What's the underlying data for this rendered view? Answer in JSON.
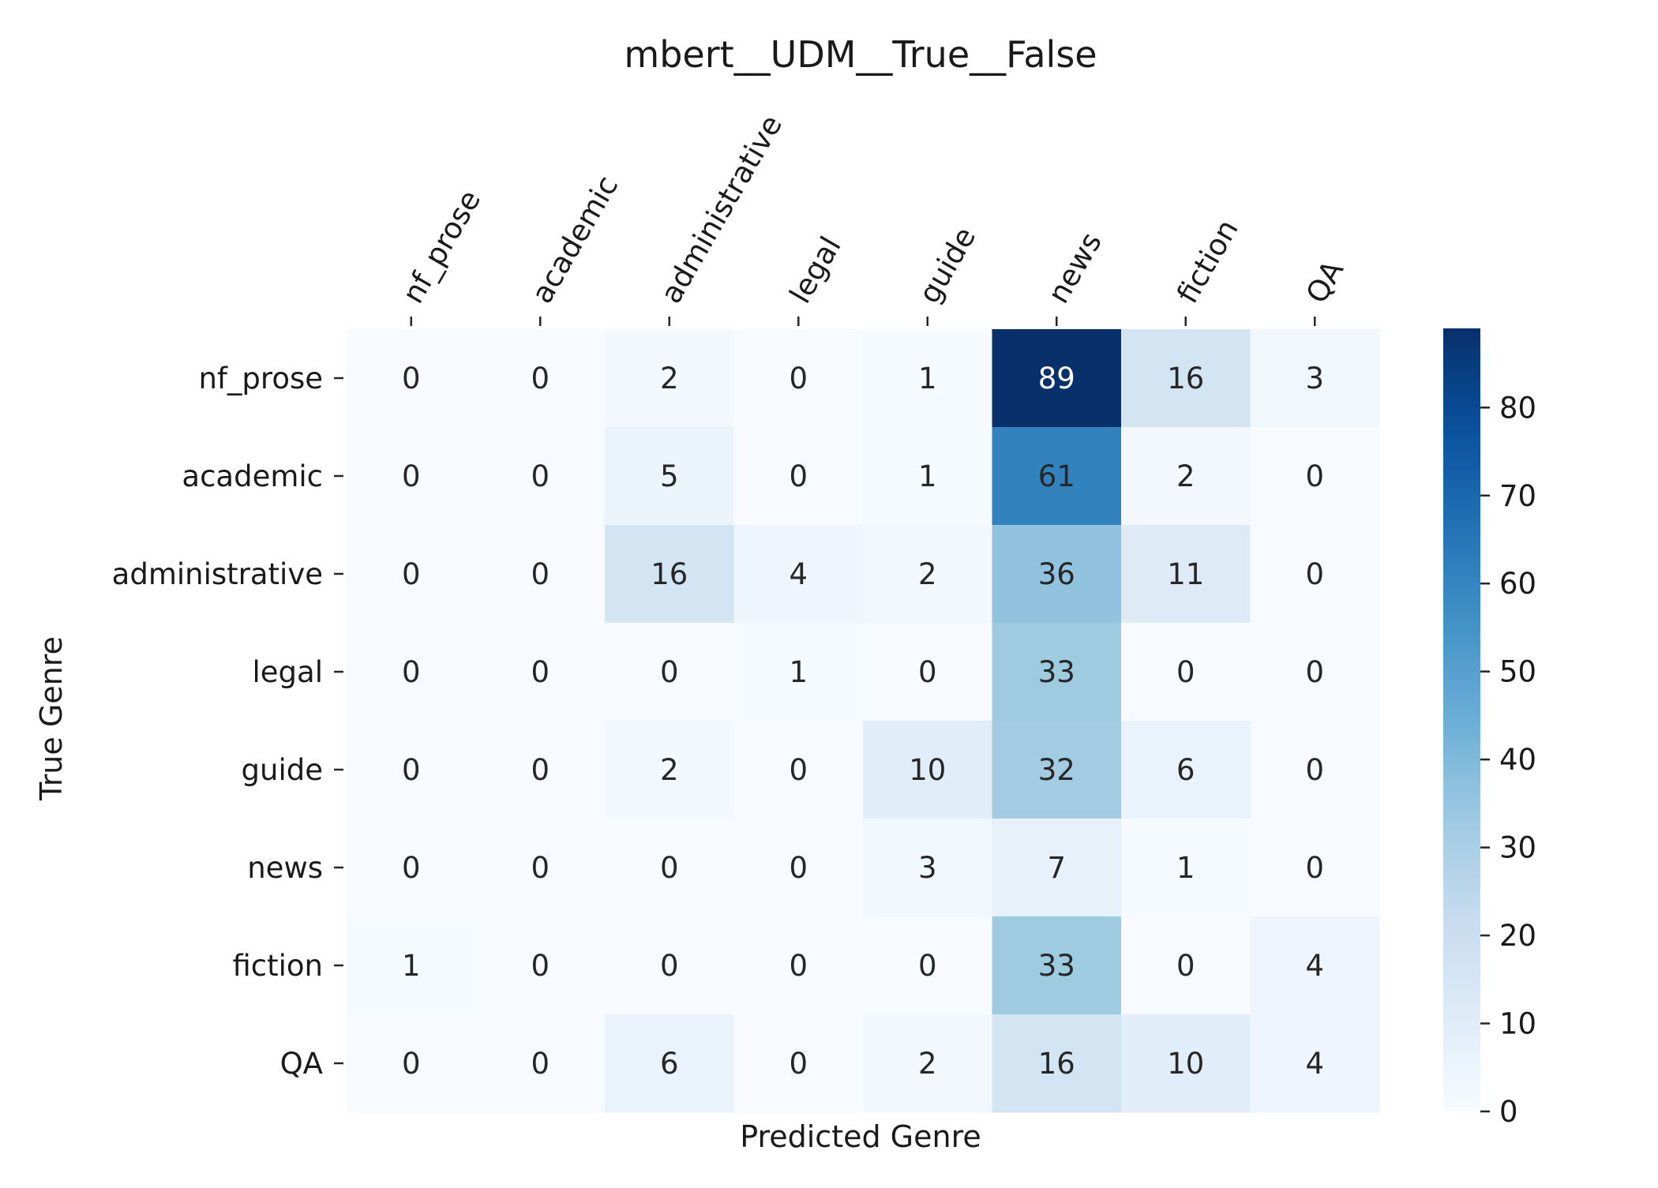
{
  "chart_data": {
    "type": "heatmap",
    "title": "mbert__UDM__True__False",
    "xlabel": "Predicted Genre",
    "ylabel": "True Genre",
    "x_categories": [
      "nf_prose",
      "academic",
      "administrative",
      "legal",
      "guide",
      "news",
      "fiction",
      "QA"
    ],
    "y_categories": [
      "nf_prose",
      "academic",
      "administrative",
      "legal",
      "guide",
      "news",
      "fiction",
      "QA"
    ],
    "values": [
      [
        0,
        0,
        2,
        0,
        1,
        89,
        16,
        3
      ],
      [
        0,
        0,
        5,
        0,
        1,
        61,
        2,
        0
      ],
      [
        0,
        0,
        16,
        4,
        2,
        36,
        11,
        0
      ],
      [
        0,
        0,
        0,
        1,
        0,
        33,
        0,
        0
      ],
      [
        0,
        0,
        2,
        0,
        10,
        32,
        6,
        0
      ],
      [
        0,
        0,
        0,
        0,
        3,
        7,
        1,
        0
      ],
      [
        1,
        0,
        0,
        0,
        0,
        33,
        0,
        4
      ],
      [
        0,
        0,
        6,
        0,
        2,
        16,
        10,
        4
      ]
    ],
    "colormap": "Blues",
    "vmin": 0,
    "vmax": 89,
    "colorbar_ticks": [
      0,
      10,
      20,
      30,
      40,
      50,
      60,
      70,
      80
    ],
    "x_tick_position": "top",
    "grid": false
  }
}
